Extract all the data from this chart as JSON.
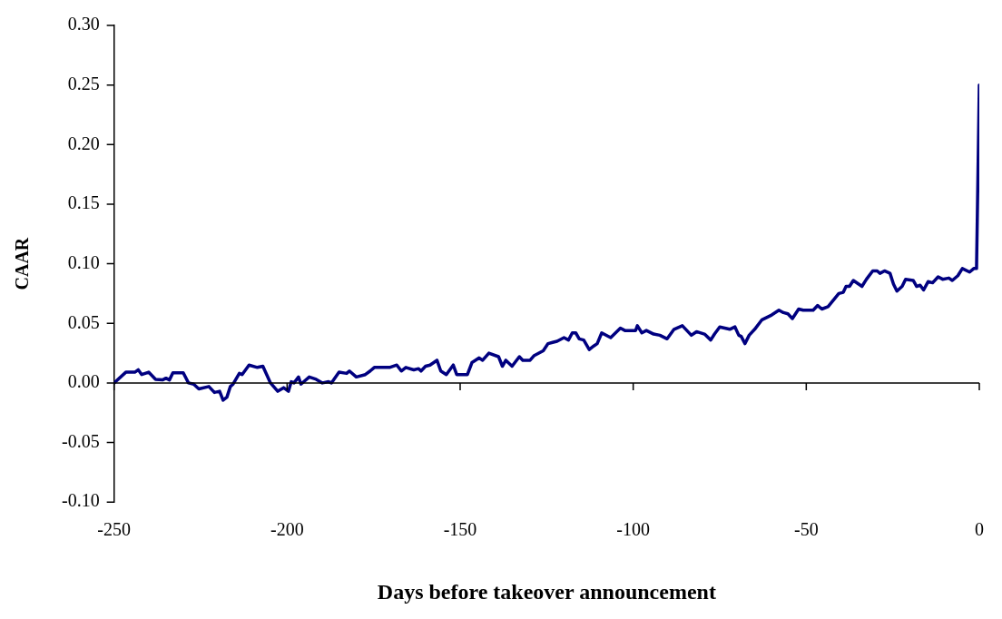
{
  "chart_data": {
    "type": "line",
    "xlabel": "Days before takeover announcement",
    "ylabel": "CAAR",
    "series": [
      {
        "color": "#000080",
        "x": [
          -250,
          -246.6,
          -244,
          -243,
          -242,
          -240,
          -238,
          -236,
          -235,
          -234,
          -233,
          -230,
          -228.5,
          -227,
          -225.5,
          -222.6,
          -221,
          -219.5,
          -218.5,
          -217.4,
          -216.4,
          -215.6,
          -213.8,
          -213,
          -211,
          -208.6,
          -207,
          -204.8,
          -202.7,
          -201,
          -199.6,
          -198.8,
          -198,
          -196.7,
          -196,
          -193.6,
          -191.6,
          -189.8,
          -188,
          -187.2,
          -185,
          -182.8,
          -182,
          -180,
          -177.4,
          -176,
          -174.8,
          -172.4,
          -170.4,
          -168.3,
          -167,
          -165.7,
          -163.4,
          -162,
          -161.3,
          -160,
          -158.7,
          -156.7,
          -155.6,
          -154,
          -152,
          -151,
          -147.9,
          -146.6,
          -144.5,
          -143.5,
          -141.7,
          -138.9,
          -137.8,
          -136.8,
          -135,
          -132.9,
          -131.9,
          -129.8,
          -128.6,
          -126,
          -124.6,
          -123.3,
          -122,
          -120,
          -118.7,
          -117.6,
          -116.6,
          -115.6,
          -114.3,
          -112.7,
          -111.4,
          -110.4,
          -109.1,
          -106.5,
          -103.7,
          -102.4,
          -99.3,
          -98.8,
          -97.5,
          -96.2,
          -94.1,
          -92.3,
          -90.2,
          -88.2,
          -85.8,
          -83.2,
          -81.7,
          -79.4,
          -77.6,
          -76.5,
          -75,
          -72.1,
          -70.6,
          -69.5,
          -68.8,
          -67.7,
          -66.5,
          -64.9,
          -62.8,
          -60,
          -57.9,
          -56.6,
          -55.3,
          -54,
          -52.2,
          -50.9,
          -48,
          -46.7,
          -45.5,
          -43.7,
          -40.6,
          -39.3,
          -38.5,
          -37.5,
          -36.4,
          -33.9,
          -32.6,
          -30.8,
          -29.5,
          -28.7,
          -27.4,
          -25.8,
          -24.8,
          -23.8,
          -22.3,
          -21.3,
          -19.1,
          -18.1,
          -17.1,
          -16.1,
          -14.8,
          -13.5,
          -11.9,
          -10.6,
          -8.8,
          -7.8,
          -6.2,
          -4.9,
          -2.8,
          -1.6,
          -0.8,
          0
        ],
        "values": [
          0,
          0.009,
          0.009,
          0.011,
          0.007,
          0.009,
          0.003,
          0.0025,
          0.004,
          0.0025,
          0.0085,
          0.0085,
          0,
          -0.001,
          -0.005,
          -0.003,
          -0.008,
          -0.007,
          -0.0145,
          -0.012,
          -0.003,
          -0.001,
          0.008,
          0.007,
          0.015,
          0.013,
          0.014,
          0,
          -0.007,
          -0.004,
          -0.007,
          0.001,
          0,
          0.005,
          -0.001,
          0.005,
          0.003,
          0,
          0.001,
          0,
          0.009,
          0.008,
          0.01,
          0.005,
          0.007,
          0.01,
          0.013,
          0.013,
          0.013,
          0.015,
          0.01,
          0.013,
          0.011,
          0.012,
          0.01,
          0.014,
          0.015,
          0.019,
          0.01,
          0.007,
          0.015,
          0.007,
          0.007,
          0.017,
          0.021,
          0.019,
          0.025,
          0.022,
          0.014,
          0.019,
          0.014,
          0.022,
          0.019,
          0.019,
          0.023,
          0.027,
          0.033,
          0.034,
          0.035,
          0.038,
          0.036,
          0.042,
          0.042,
          0.037,
          0.036,
          0.028,
          0.031,
          0.033,
          0.042,
          0.038,
          0.046,
          0.044,
          0.044,
          0.048,
          0.042,
          0.044,
          0.041,
          0.04,
          0.037,
          0.045,
          0.048,
          0.04,
          0.043,
          0.041,
          0.036,
          0.041,
          0.047,
          0.045,
          0.047,
          0.04,
          0.039,
          0.033,
          0.04,
          0.045,
          0.053,
          0.057,
          0.061,
          0.059,
          0.058,
          0.054,
          0.062,
          0.061,
          0.061,
          0.065,
          0.062,
          0.064,
          0.075,
          0.076,
          0.081,
          0.081,
          0.086,
          0.081,
          0.087,
          0.094,
          0.094,
          0.092,
          0.094,
          0.092,
          0.083,
          0.077,
          0.081,
          0.087,
          0.086,
          0.081,
          0.082,
          0.078,
          0.085,
          0.084,
          0.089,
          0.087,
          0.088,
          0.086,
          0.09,
          0.096,
          0.093,
          0.096,
          0.096,
          0.25
        ]
      }
    ],
    "xlim": [
      -250,
      0
    ],
    "xticks": [
      -250,
      -200,
      -150,
      -100,
      -50,
      0
    ],
    "ylim": [
      -0.1,
      0.3
    ],
    "yticks": [
      {
        "value": -0.1,
        "label": "-0.10"
      },
      {
        "value": -0.05,
        "label": "-0.05"
      },
      {
        "value": 0,
        "label": "0.00"
      },
      {
        "value": 0.05,
        "label": "0.05"
      },
      {
        "value": 0.1,
        "label": "0.10"
      },
      {
        "value": 0.15,
        "label": "0.15"
      },
      {
        "value": 0.2,
        "label": "0.20"
      },
      {
        "value": 0.25,
        "label": "0.25"
      },
      {
        "value": 0.3,
        "label": "0.30"
      }
    ],
    "ref_lines": [
      {
        "axis": "y",
        "value": 0,
        "color": "#000000",
        "line_style": "solid"
      }
    ],
    "grid": false,
    "legend": false,
    "marker": "none",
    "line_style": "solid"
  }
}
